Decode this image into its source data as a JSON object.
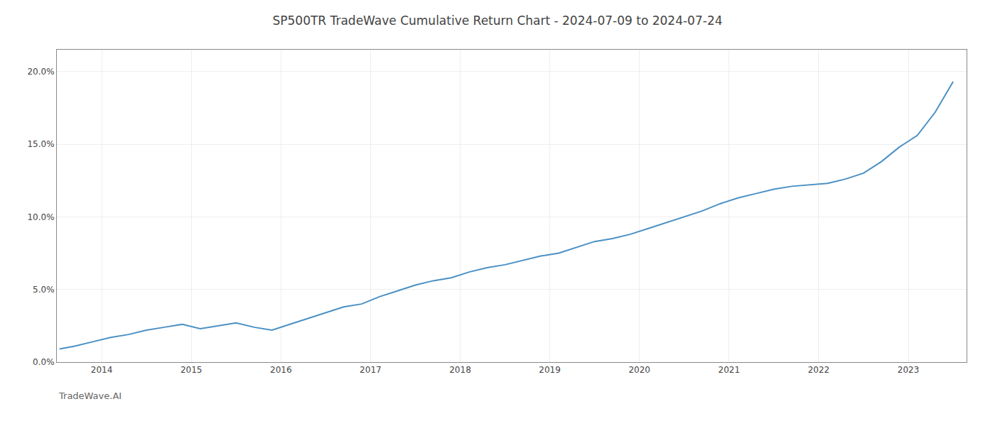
{
  "chart_data": {
    "type": "line",
    "title": "SP500TR TradeWave Cumulative Return Chart - 2024-07-09 to 2024-07-24",
    "annotations": [
      "TradeWave.AI"
    ],
    "x": [
      2013.53,
      2013.7,
      2013.9,
      2014.1,
      2014.3,
      2014.5,
      2014.7,
      2014.9,
      2015.1,
      2015.3,
      2015.5,
      2015.7,
      2015.9,
      2016.1,
      2016.3,
      2016.5,
      2016.7,
      2016.9,
      2017.1,
      2017.3,
      2017.5,
      2017.7,
      2017.9,
      2018.1,
      2018.3,
      2018.5,
      2018.7,
      2018.9,
      2019.1,
      2019.3,
      2019.5,
      2019.7,
      2019.9,
      2020.1,
      2020.3,
      2020.5,
      2020.7,
      2020.9,
      2021.1,
      2021.3,
      2021.5,
      2021.7,
      2021.9,
      2022.1,
      2022.3,
      2022.5,
      2022.7,
      2022.9,
      2023.1,
      2023.3,
      2023.5
    ],
    "values": [
      0.009,
      0.011,
      0.014,
      0.017,
      0.019,
      0.022,
      0.024,
      0.026,
      0.023,
      0.025,
      0.027,
      0.024,
      0.022,
      0.026,
      0.03,
      0.034,
      0.038,
      0.04,
      0.045,
      0.049,
      0.053,
      0.056,
      0.058,
      0.062,
      0.065,
      0.067,
      0.07,
      0.073,
      0.075,
      0.079,
      0.083,
      0.085,
      0.088,
      0.092,
      0.096,
      0.1,
      0.104,
      0.109,
      0.113,
      0.116,
      0.119,
      0.121,
      0.122,
      0.123,
      0.126,
      0.13,
      0.138,
      0.148,
      0.156,
      0.172,
      0.193
    ],
    "color": "#4a90c4",
    "xlim": [
      2013.5,
      2023.65
    ],
    "xticks": [
      2014,
      2015,
      2016,
      2017,
      2018,
      2019,
      2020,
      2021,
      2022,
      2023
    ],
    "ylim": [
      0,
      0.215
    ],
    "yticks": [
      {
        "value": 0.0,
        "label": "0.0%"
      },
      {
        "value": 0.05,
        "label": "5.0%"
      },
      {
        "value": 0.1,
        "label": "10.0%"
      },
      {
        "value": 0.15,
        "label": "15.0%"
      },
      {
        "value": 0.2,
        "label": "20.0%"
      }
    ],
    "grid": true
  }
}
